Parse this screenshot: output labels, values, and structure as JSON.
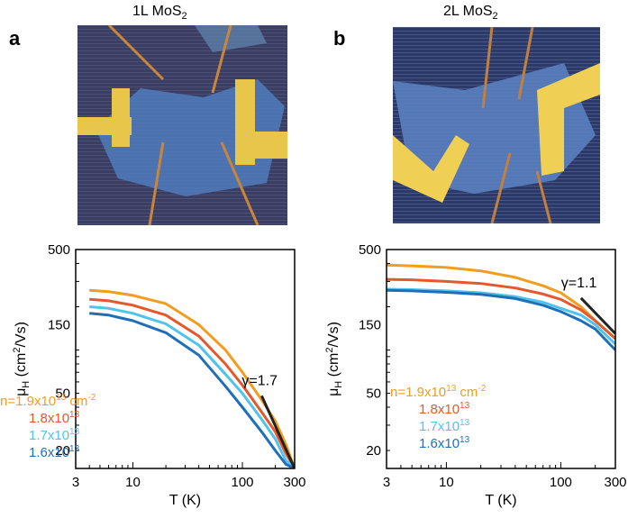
{
  "figure": {
    "panels": [
      {
        "letter": "a",
        "title": "1L MoS",
        "title_sub": "2",
        "image": {
          "alt": "AFM image of a monolayer MoS2 Hall bar device with gold contacts",
          "colors": {
            "substrate": "#3b3f66",
            "flake": "#4f78b8",
            "contact": "#e7c64a",
            "contact_edge": "#c9863a"
          }
        },
        "chart_data": {
          "type": "line",
          "xscale": "log",
          "yscale": "log",
          "xlim": [
            3,
            300
          ],
          "ylim": [
            15,
            500
          ],
          "xticks": [
            3,
            10,
            100,
            300
          ],
          "xtick_labels": [
            "3",
            "10",
            "100",
            "300"
          ],
          "yticks": [
            20,
            50,
            150,
            500
          ],
          "ytick_labels": [
            "20",
            "50",
            "150",
            "500"
          ],
          "xlabel": "T (K)",
          "ylabel": "μ",
          "ylabel_sub": "H",
          "ylabel_unit_pre": " (cm",
          "ylabel_unit_sup": "2",
          "ylabel_unit_post": "/Vs)",
          "grid": false,
          "series": [
            {
              "name": "n=1.9x10",
              "exp": "13",
              "unit": " cm",
              "unit_sup": "-2",
              "color": "#f39c1f",
              "x": [
                4,
                6,
                10,
                20,
                40,
                70,
                100,
                150,
                200,
                250,
                300
              ],
              "y": [
                260,
                255,
                240,
                210,
                150,
                100,
                70,
                45,
                32,
                22,
                15
              ]
            },
            {
              "name": "1.8x10",
              "exp": "13",
              "color": "#e4582b",
              "x": [
                4,
                6,
                10,
                20,
                40,
                70,
                100,
                150,
                200,
                250,
                300
              ],
              "y": [
                225,
                220,
                205,
                175,
                125,
                80,
                57,
                37,
                27,
                19,
                15
              ]
            },
            {
              "name": "1.7x10",
              "exp": "13",
              "color": "#4fc3ec",
              "x": [
                4,
                6,
                10,
                20,
                40,
                70,
                100,
                150,
                200,
                250,
                300
              ],
              "y": [
                200,
                195,
                180,
                152,
                108,
                68,
                50,
                33,
                24,
                17,
                15
              ]
            },
            {
              "name": "1.6x10",
              "exp": "13",
              "color": "#1f6fb8",
              "x": [
                4,
                6,
                10,
                20,
                40,
                70,
                100,
                150,
                200,
                250,
                300
              ],
              "y": [
                180,
                175,
                160,
                132,
                92,
                56,
                40,
                27,
                20,
                16,
                15
              ]
            }
          ],
          "guide": {
            "label": "γ=1.7",
            "x": [
              150,
              300
            ],
            "y": [
              48,
              15
            ]
          }
        }
      },
      {
        "letter": "b",
        "title": "2L MoS",
        "title_sub": "2",
        "image": {
          "alt": "AFM image of a bilayer MoS2 Hall bar device with gold contacts",
          "colors": {
            "substrate": "#2c3a6a",
            "flake": "#5a80c0",
            "contact": "#f0cf55",
            "contact_edge": "#c08040"
          }
        },
        "chart_data": {
          "type": "line",
          "xscale": "log",
          "yscale": "log",
          "xlim": [
            3,
            300
          ],
          "ylim": [
            15,
            500
          ],
          "xticks": [
            3,
            10,
            100,
            300
          ],
          "xtick_labels": [
            "3",
            "10",
            "100",
            "300"
          ],
          "yticks": [
            20,
            50,
            150,
            500
          ],
          "ytick_labels": [
            "20",
            "50",
            "150",
            "500"
          ],
          "xlabel": "T (K)",
          "ylabel": "μ",
          "ylabel_sub": "H",
          "ylabel_unit_pre": " (cm",
          "ylabel_unit_sup": "2",
          "ylabel_unit_post": "/Vs)",
          "grid": false,
          "series": [
            {
              "name": "n=1.9x10",
              "exp": "13",
              "unit": " cm",
              "unit_sup": "-2",
              "color": "#f39c1f",
              "x": [
                3,
                5,
                10,
                20,
                40,
                70,
                100,
                150,
                200,
                300
              ],
              "y": [
                390,
                385,
                375,
                355,
                320,
                280,
                250,
                200,
                160,
                120
              ]
            },
            {
              "name": "1.8x10",
              "exp": "13",
              "color": "#e4582b",
              "x": [
                3,
                5,
                10,
                20,
                40,
                70,
                100,
                150,
                200,
                300
              ],
              "y": [
                310,
                308,
                300,
                290,
                270,
                245,
                225,
                190,
                160,
                120
              ]
            },
            {
              "name": "1.7x10",
              "exp": "13",
              "color": "#4fc3ec",
              "x": [
                3,
                5,
                10,
                20,
                40,
                70,
                100,
                150,
                200,
                300
              ],
              "y": [
                265,
                263,
                258,
                250,
                235,
                215,
                195,
                175,
                150,
                110
              ]
            },
            {
              "name": "1.6x10",
              "exp": "13",
              "color": "#1f6fb8",
              "x": [
                3,
                5,
                10,
                20,
                40,
                70,
                100,
                150,
                200,
                300
              ],
              "y": [
                260,
                258,
                252,
                244,
                228,
                205,
                185,
                160,
                140,
                100
              ]
            }
          ],
          "guide": {
            "label": "γ=1.1",
            "x": [
              150,
              300
            ],
            "y": [
              230,
              130
            ]
          }
        }
      }
    ]
  }
}
